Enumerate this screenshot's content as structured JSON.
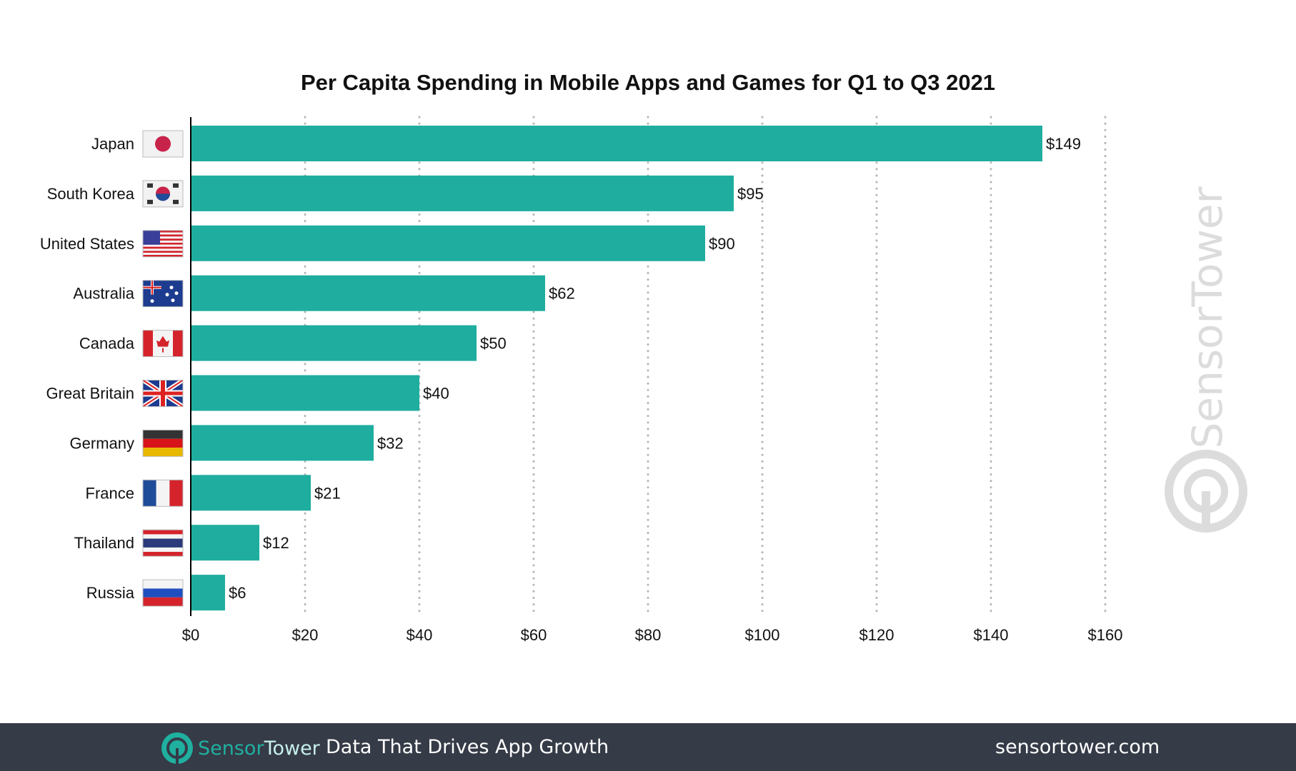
{
  "chart_data": {
    "type": "bar",
    "orientation": "horizontal",
    "title": "Per Capita Spending in Mobile Apps and Games for Q1 to Q3 2021",
    "categories": [
      "Japan",
      "South Korea",
      "United States",
      "Australia",
      "Canada",
      "Great Britain",
      "Germany",
      "France",
      "Thailand",
      "Russia"
    ],
    "values": [
      149,
      95,
      90,
      62,
      50,
      40,
      32,
      21,
      12,
      6
    ],
    "data_labels": [
      "$149",
      "$95",
      "$90",
      "$62",
      "$50",
      "$40",
      "$32",
      "$21",
      "$12",
      "$6"
    ],
    "xlim": [
      0,
      160
    ],
    "xticks": [
      "$0",
      "$20",
      "$40",
      "$60",
      "$80",
      "$100",
      "$120",
      "$140",
      "$160"
    ],
    "grid": "vertical dotted",
    "bar_color": "#1fad9f",
    "flags": [
      "jp",
      "kr",
      "us",
      "au",
      "ca",
      "gb",
      "de",
      "fr",
      "th",
      "ru"
    ]
  },
  "watermark": "SensorTower",
  "footer": {
    "brand_a": "Sensor",
    "brand_b": "Tower",
    "tagline": "Data That Drives App Growth",
    "url": "sensortower.com",
    "bg": "#353b47"
  }
}
